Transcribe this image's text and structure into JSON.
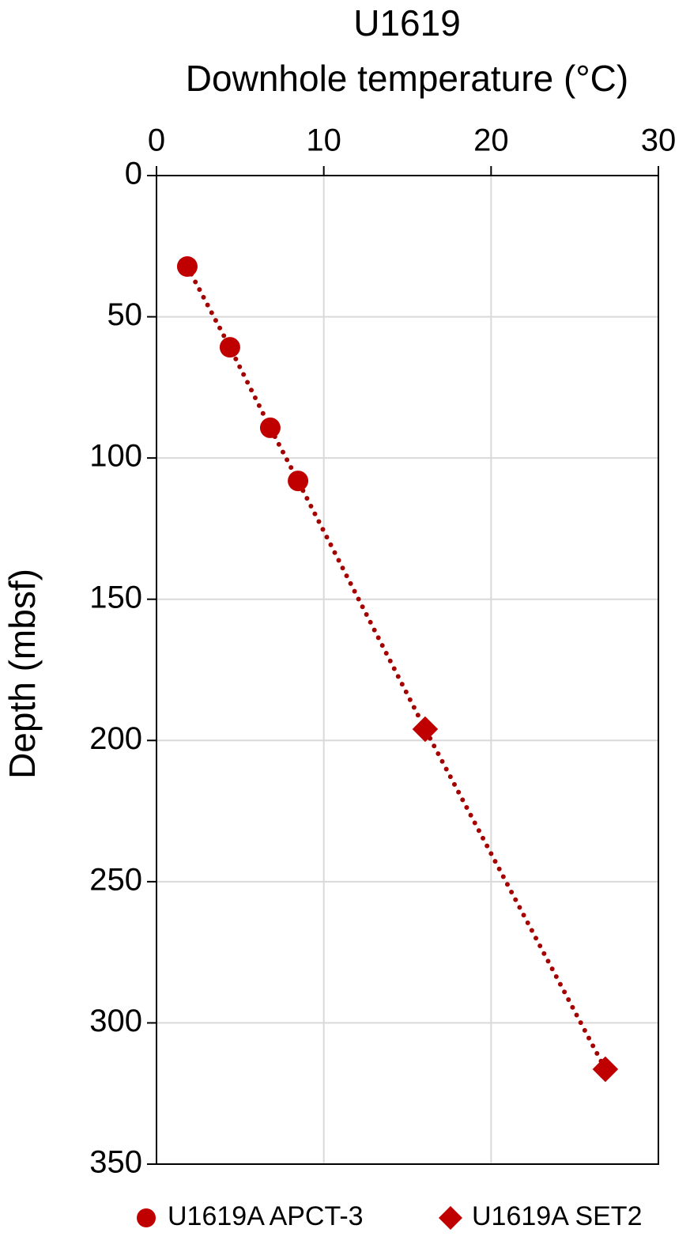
{
  "chart_data": {
    "type": "scatter",
    "title": "U1619",
    "x_label": "Downhole temperature (°C)",
    "y_label": "Depth (mbsf)",
    "xlim": [
      0,
      30
    ],
    "xticks": [
      0,
      10,
      20,
      30
    ],
    "ylim": [
      0,
      350
    ],
    "yticks": [
      0,
      50,
      100,
      150,
      200,
      250,
      300,
      350
    ],
    "y_reversed": true,
    "x_axis_position": "top",
    "grid": true,
    "legend": "bottom",
    "connect": true,
    "series": [
      {
        "name": "U1619A APCT-3",
        "color": "#c00000",
        "marker": "circle",
        "x": [
          1.84,
          4.39,
          6.8,
          8.46
        ],
        "values": [
          32.2,
          60.8,
          89.3,
          108.1
        ]
      },
      {
        "name": "U1619A SET2",
        "color": "#c00000",
        "marker": "diamond",
        "x": [
          16.06,
          26.83
        ],
        "values": [
          196.0,
          316.4
        ]
      }
    ]
  }
}
